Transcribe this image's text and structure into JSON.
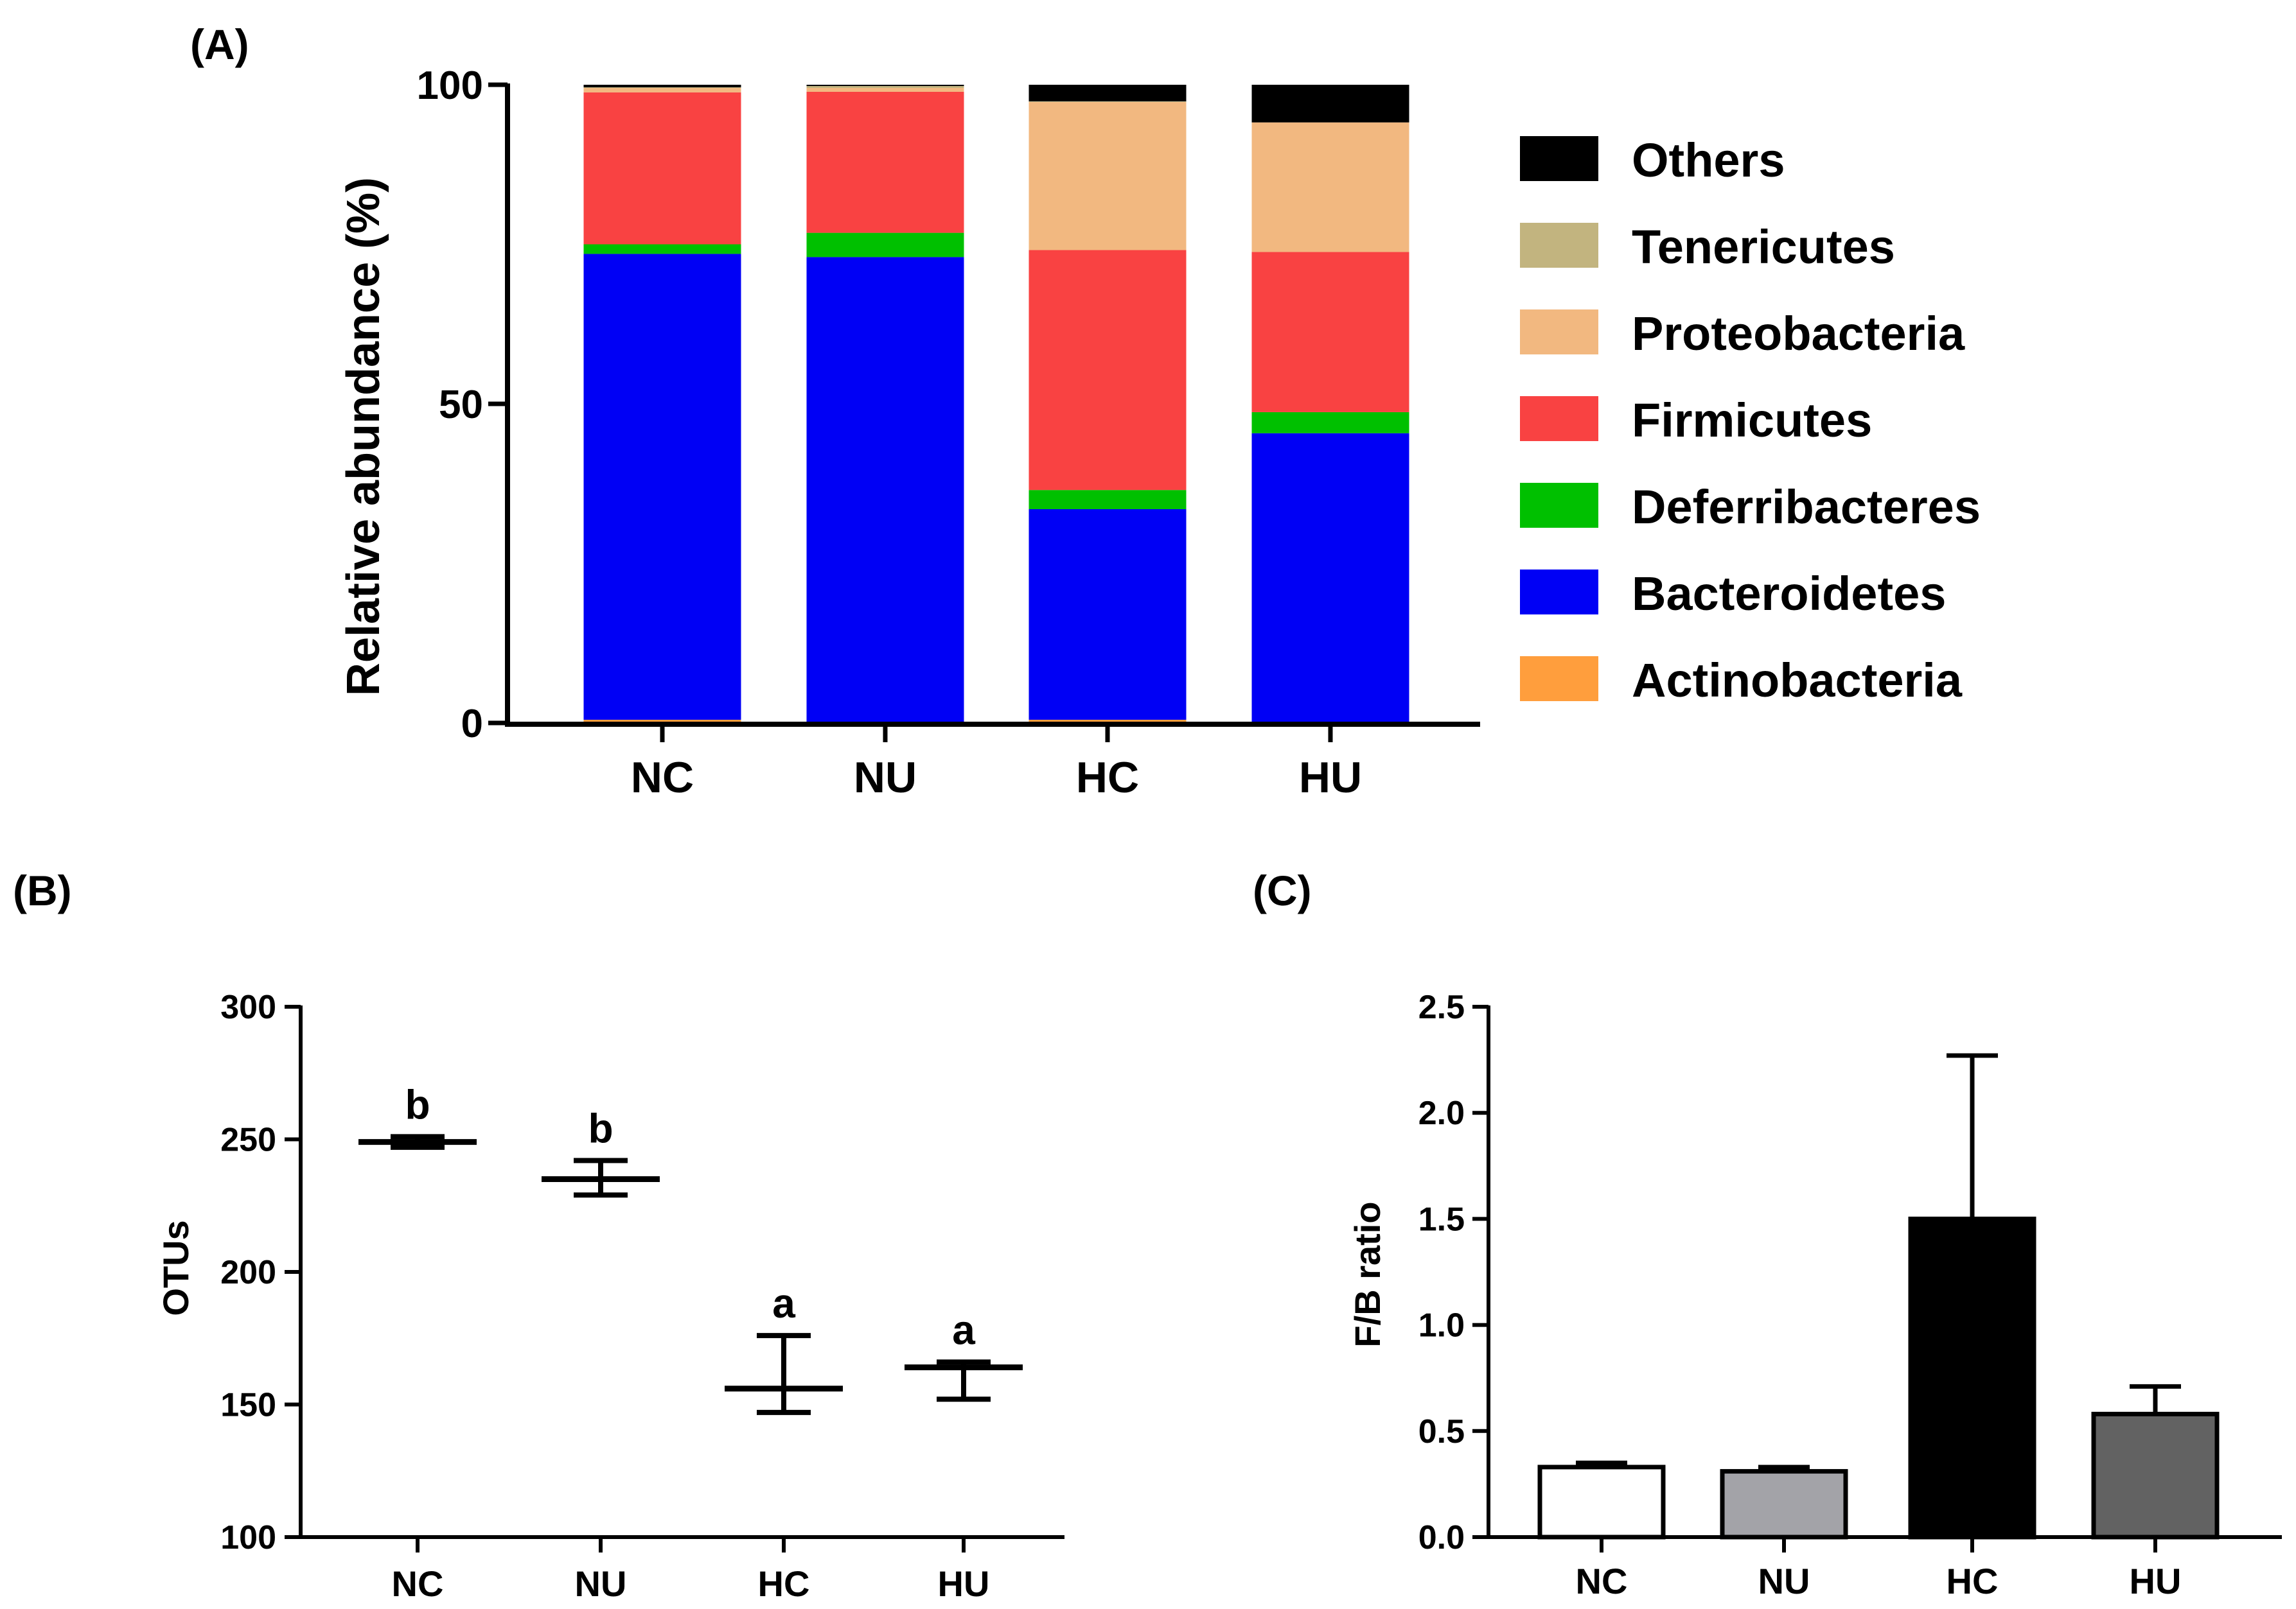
{
  "chart_data": [
    {
      "panel": "(A)",
      "type": "bar",
      "stacked": true,
      "ylabel": "Relative abundance (%)",
      "ylim": [
        0,
        100
      ],
      "yticks": [
        "0",
        "50",
        "100"
      ],
      "categories": [
        "NC",
        "NU",
        "HC",
        "HU"
      ],
      "legend_position": "right",
      "series": [
        {
          "name": "Actinobacteria",
          "color": "#FF9E3D",
          "values": [
            0.5,
            0.2,
            0.5,
            0.2
          ]
        },
        {
          "name": "Bacteroidetes",
          "color": "#0000F5",
          "values": [
            73.0,
            72.8,
            33.0,
            45.2
          ]
        },
        {
          "name": "Deferribacteres",
          "color": "#00C000",
          "values": [
            1.5,
            3.8,
            3.0,
            3.3
          ]
        },
        {
          "name": "Firmicutes",
          "color": "#F94242",
          "values": [
            23.8,
            22.1,
            37.6,
            25.1
          ]
        },
        {
          "name": "Proteobacteria",
          "color": "#F2B880",
          "values": [
            0.7,
            0.6,
            23.2,
            20.3
          ]
        },
        {
          "name": "Tenericutes",
          "color": "#C2B47F",
          "values": [
            0.1,
            0.3,
            0.1,
            0.0
          ]
        },
        {
          "name": "Others",
          "color": "#000000",
          "values": [
            0.4,
            0.2,
            2.6,
            5.9
          ]
        }
      ]
    },
    {
      "panel": "(B)",
      "type": "scatter",
      "ylabel": "OTUs",
      "ylim": [
        100,
        300
      ],
      "yticks": [
        "100",
        "150",
        "200",
        "250",
        "300"
      ],
      "categories": [
        "NC",
        "NU",
        "HC",
        "HU"
      ],
      "mean": [
        249,
        235,
        156,
        164
      ],
      "upper": [
        251,
        242,
        176,
        166
      ],
      "lower": [
        247,
        229,
        147,
        152
      ],
      "significance": [
        "b",
        "b",
        "a",
        "a"
      ]
    },
    {
      "panel": "(C)",
      "type": "bar",
      "ylabel": "F/B ratio",
      "ylim": [
        0,
        2.5
      ],
      "yticks": [
        "0.0",
        "0.5",
        "1.0",
        "1.5",
        "2.0",
        "2.5"
      ],
      "categories": [
        "NC",
        "NU",
        "HC",
        "HU"
      ],
      "values": [
        0.33,
        0.31,
        1.5,
        0.58
      ],
      "error_upper": [
        0.35,
        0.33,
        2.27,
        0.71
      ],
      "bar_colors": [
        "#FFFFFF",
        "#A3A3A8",
        "#000000",
        "#626262"
      ]
    }
  ]
}
